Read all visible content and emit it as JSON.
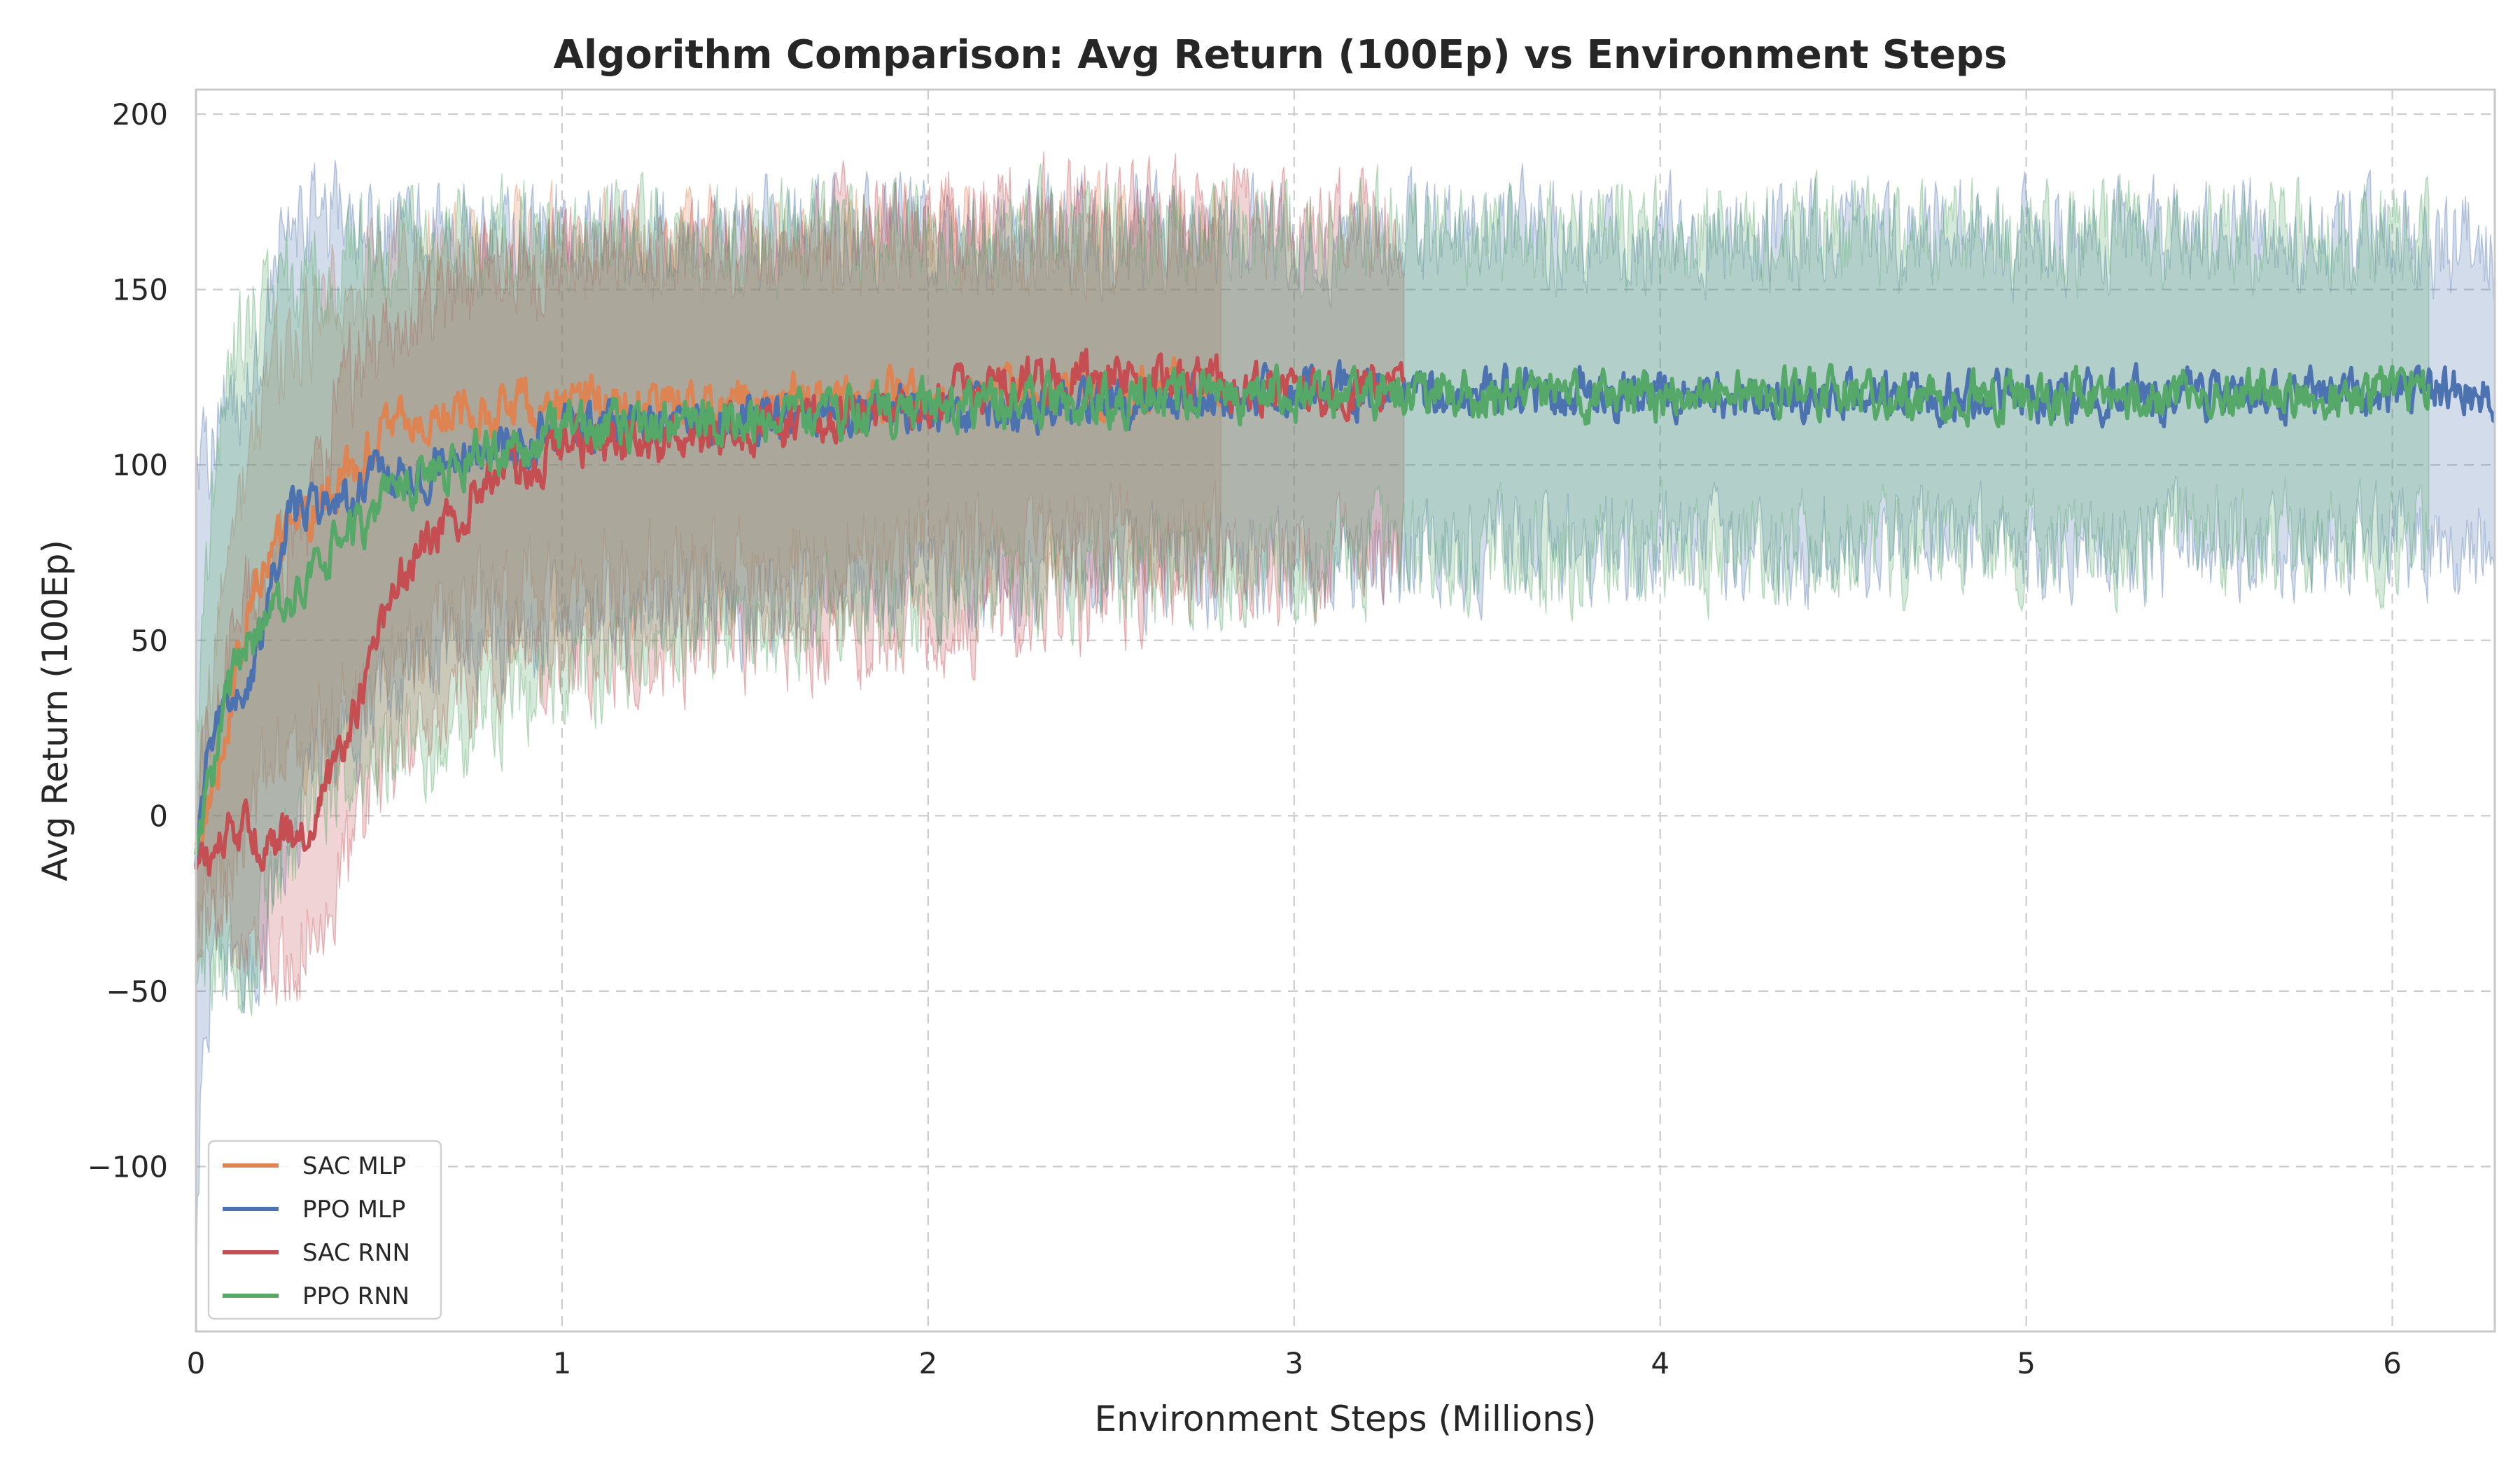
{
  "chart_data": {
    "type": "line",
    "title": "Algorithm Comparison: Avg Return (100Ep) vs Environment Steps",
    "xlabel": "Environment Steps (Millions)",
    "ylabel": "Avg Return (100Ep)",
    "xlim": [
      0,
      6.28
    ],
    "ylim": [
      -147,
      207
    ],
    "xticks": [
      0,
      1,
      2,
      3,
      4,
      5,
      6
    ],
    "xtick_labels": [
      "0",
      "1",
      "2",
      "3",
      "4",
      "5",
      "6"
    ],
    "yticks": [
      -100,
      -50,
      0,
      50,
      100,
      150,
      200
    ],
    "ytick_labels": [
      "−100",
      "−50",
      "0",
      "50",
      "100",
      "150",
      "200"
    ],
    "grid": true,
    "legend_position": "lower-left",
    "series": [
      {
        "name": "SAC MLP",
        "color": "#dd8452",
        "x": [
          0.0,
          0.05,
          0.1,
          0.15,
          0.2,
          0.3,
          0.4,
          0.5,
          0.6,
          0.8,
          1.0,
          1.2,
          1.5,
          2.0,
          2.5,
          2.8
        ],
        "mean": [
          -10,
          10,
          35,
          60,
          75,
          85,
          95,
          108,
          113,
          116,
          118,
          117,
          119,
          120,
          121,
          122
        ],
        "lower": [
          -30,
          -20,
          -10,
          0,
          10,
          20,
          30,
          45,
          50,
          60,
          65,
          68,
          72,
          76,
          78,
          80
        ],
        "upper": [
          10,
          40,
          80,
          110,
          125,
          140,
          150,
          155,
          158,
          160,
          162,
          162,
          163,
          164,
          165,
          165
        ]
      },
      {
        "name": "PPO MLP",
        "color": "#4c72b0",
        "x": [
          0.0,
          0.02,
          0.05,
          0.1,
          0.15,
          0.2,
          0.25,
          0.3,
          0.4,
          0.5,
          0.7,
          1.0,
          1.5,
          2.0,
          2.5,
          3.0,
          3.5,
          4.0,
          4.5,
          5.0,
          5.5,
          6.0,
          6.28
        ],
        "mean": [
          -10,
          10,
          25,
          35,
          35,
          60,
          85,
          90,
          88,
          95,
          100,
          110,
          113,
          116,
          118,
          120,
          121,
          120,
          120,
          120,
          120,
          120,
          121
        ],
        "lower": [
          -140,
          -60,
          -40,
          -40,
          -45,
          -30,
          -10,
          10,
          20,
          35,
          45,
          55,
          60,
          65,
          70,
          72,
          75,
          76,
          76,
          77,
          77,
          78,
          80
        ],
        "upper": [
          90,
          100,
          110,
          120,
          125,
          150,
          165,
          170,
          170,
          168,
          166,
          166,
          166,
          166,
          166,
          166,
          166,
          165,
          165,
          165,
          165,
          165,
          162
        ]
      },
      {
        "name": "SAC RNN",
        "color": "#c44e52",
        "x": [
          0.0,
          0.05,
          0.1,
          0.15,
          0.2,
          0.3,
          0.35,
          0.4,
          0.5,
          0.6,
          0.7,
          0.8,
          1.0,
          1.5,
          2.0,
          2.3,
          2.6,
          3.0,
          3.3
        ],
        "mean": [
          -15,
          -10,
          -5,
          -5,
          -8,
          -5,
          5,
          20,
          50,
          75,
          85,
          95,
          105,
          110,
          118,
          125,
          125,
          120,
          125
        ],
        "lower": [
          -30,
          -30,
          -35,
          -35,
          -40,
          -35,
          -30,
          -20,
          10,
          25,
          35,
          40,
          45,
          50,
          55,
          60,
          65,
          70,
          75
        ],
        "upper": [
          0,
          30,
          50,
          60,
          70,
          85,
          100,
          120,
          135,
          145,
          150,
          155,
          160,
          165,
          170,
          172,
          172,
          170,
          168
        ]
      },
      {
        "name": "PPO RNN",
        "color": "#55a868",
        "x": [
          0.0,
          0.05,
          0.1,
          0.15,
          0.2,
          0.3,
          0.4,
          0.5,
          0.6,
          0.8,
          1.0,
          1.5,
          2.0,
          2.5,
          3.0,
          3.5,
          4.0,
          4.5,
          5.0,
          5.5,
          6.0,
          6.1
        ],
        "mean": [
          -15,
          15,
          40,
          50,
          55,
          65,
          80,
          88,
          95,
          103,
          110,
          113,
          116,
          118,
          120,
          120,
          120,
          120,
          120,
          120,
          120,
          121
        ],
        "lower": [
          -35,
          -40,
          -50,
          -40,
          -20,
          -5,
          10,
          15,
          20,
          30,
          40,
          55,
          62,
          68,
          72,
          74,
          75,
          76,
          77,
          78,
          78,
          80
        ],
        "upper": [
          10,
          100,
          130,
          140,
          150,
          155,
          158,
          160,
          162,
          164,
          165,
          166,
          166,
          166,
          166,
          166,
          166,
          166,
          166,
          166,
          166,
          165
        ]
      }
    ]
  }
}
